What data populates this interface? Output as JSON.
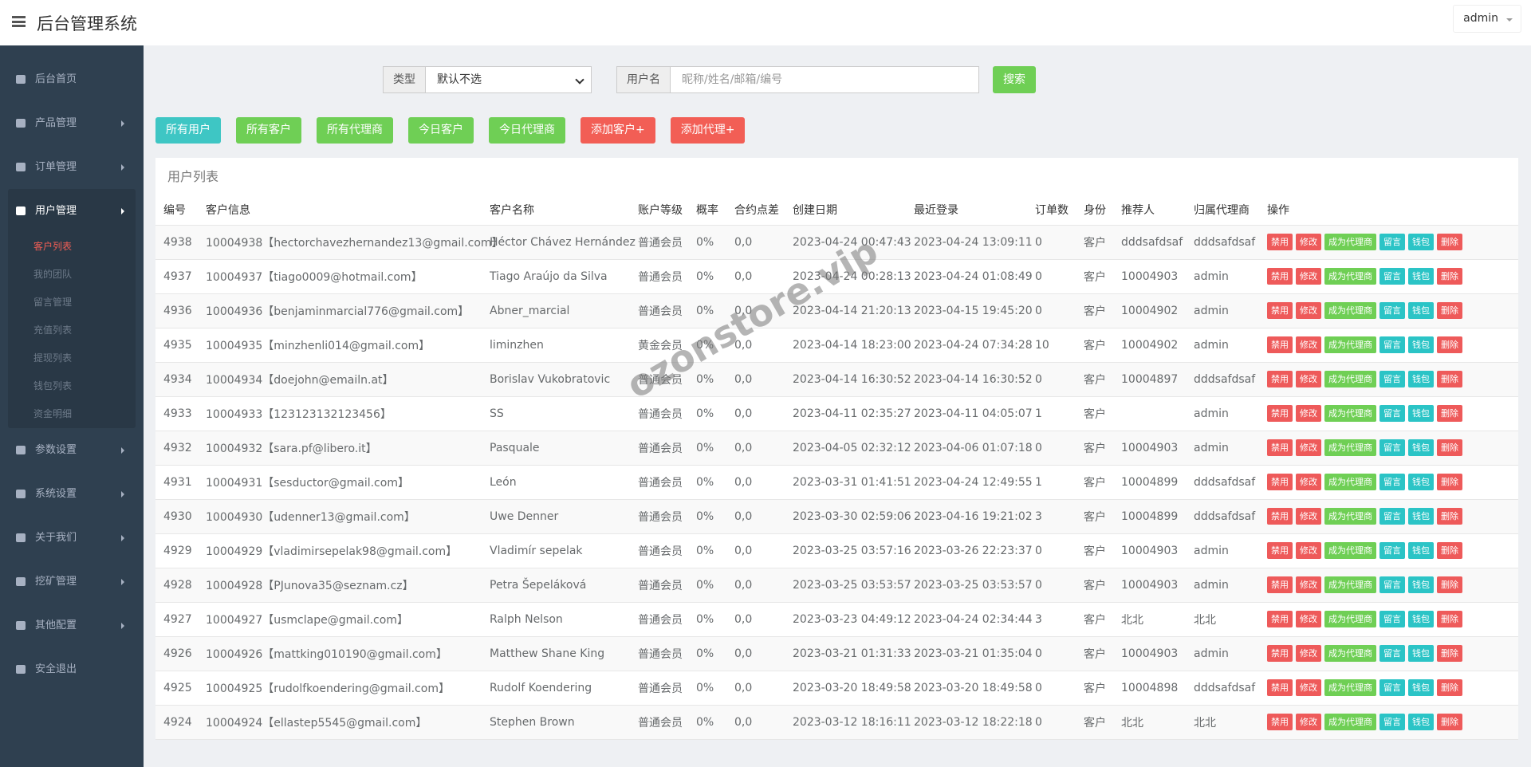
{
  "header": {
    "title": "后台管理系统",
    "user": "admin"
  },
  "sidebar": {
    "items": [
      {
        "label": "后台首页",
        "arrow": false
      },
      {
        "label": "产品管理",
        "arrow": true
      },
      {
        "label": "订单管理",
        "arrow": true
      },
      {
        "label": "用户管理",
        "arrow": true,
        "active": true,
        "children": [
          "客户列表",
          "我的团队",
          "留言管理",
          "充值列表",
          "提现列表",
          "钱包列表",
          "资金明细"
        ]
      },
      {
        "label": "参数设置",
        "arrow": true
      },
      {
        "label": "系统设置",
        "arrow": true
      },
      {
        "label": "关于我们",
        "arrow": true
      },
      {
        "label": "挖矿管理",
        "arrow": true
      },
      {
        "label": "其他配置",
        "arrow": true
      },
      {
        "label": "安全退出",
        "arrow": false
      }
    ]
  },
  "filters": {
    "type_label": "类型",
    "type_value": "默认不选",
    "user_label": "用户名",
    "user_placeholder": "昵称/姓名/邮箱/编号",
    "search": "搜索"
  },
  "buttons": [
    {
      "label": "所有用户",
      "color": "#3ec6c4"
    },
    {
      "label": "所有客户",
      "color": "#6fcf55"
    },
    {
      "label": "所有代理商",
      "color": "#6fcf55"
    },
    {
      "label": "今日客户",
      "color": "#6fcf55"
    },
    {
      "label": "今日代理商",
      "color": "#6fcf55"
    },
    {
      "label": "添加客户+",
      "color": "#f25e55"
    },
    {
      "label": "添加代理+",
      "color": "#f25e55"
    }
  ],
  "watermark": "ozonstore.vip",
  "table": {
    "title": "用户列表",
    "columns": [
      "编号",
      "客户信息",
      "客户名称",
      "账户等级",
      "概率",
      "合约点差",
      "创建日期",
      "最近登录",
      "订单数",
      "身份",
      "推荐人",
      "归属代理商",
      "操作"
    ],
    "actions": [
      {
        "label": "禁用",
        "color": "#ee5a5a"
      },
      {
        "label": "修改",
        "color": "#ee5a5a"
      },
      {
        "label": "成为代理商",
        "color": "#6fcf55"
      },
      {
        "label": "留言",
        "color": "#2bc4c6"
      },
      {
        "label": "钱包",
        "color": "#2bc4c6"
      },
      {
        "label": "删除",
        "color": "#ee5a5a"
      }
    ],
    "rows": [
      [
        "4938",
        "10004938【hectorchavezhernandez13@gmail.com】",
        "Héctor Chávez Hernández",
        "普通会员",
        "0%",
        "0,0",
        "2023-04-24 00:47:43",
        "2023-04-24 13:09:11",
        "0",
        "客户",
        "dddsafdsaf",
        "dddsafdsaf"
      ],
      [
        "4937",
        "10004937【tiago0009@hotmail.com】",
        "Tiago Araújo da Silva",
        "普通会员",
        "0%",
        "0,0",
        "2023-04-24 00:28:13",
        "2023-04-24 01:08:49",
        "0",
        "客户",
        "10004903",
        "admin"
      ],
      [
        "4936",
        "10004936【benjaminmarcial776@gmail.com】",
        "Abner_marcial",
        "普通会员",
        "0%",
        "0,0",
        "2023-04-14 21:20:13",
        "2023-04-15 19:45:20",
        "0",
        "客户",
        "10004902",
        "admin"
      ],
      [
        "4935",
        "10004935【minzhenli014@gmail.com】",
        "liminzhen",
        "黄金会员",
        "0%",
        "0,0",
        "2023-04-14 18:23:00",
        "2023-04-24 07:34:28",
        "10",
        "客户",
        "10004902",
        "admin"
      ],
      [
        "4934",
        "10004934【doejohn@emailn.at】",
        "Borislav Vukobratovic",
        "普通会员",
        "0%",
        "0,0",
        "2023-04-14 16:30:52",
        "2023-04-14 16:30:52",
        "0",
        "客户",
        "10004897",
        "dddsafdsaf"
      ],
      [
        "4933",
        "10004933【123123132123456】",
        "SS",
        "普通会员",
        "0%",
        "0,0",
        "2023-04-11 02:35:27",
        "2023-04-11 04:05:07",
        "1",
        "客户",
        null,
        "admin"
      ],
      [
        "4932",
        "10004932【sara.pf@libero.it】",
        "Pasquale",
        "普通会员",
        "0%",
        "0,0",
        "2023-04-05 02:32:12",
        "2023-04-06 01:07:18",
        "0",
        "客户",
        "10004903",
        "admin"
      ],
      [
        "4931",
        "10004931【sesductor@gmail.com】",
        "León",
        "普通会员",
        "0%",
        "0,0",
        "2023-03-31 01:41:51",
        "2023-04-24 12:49:55",
        "1",
        "客户",
        "10004899",
        "dddsafdsaf"
      ],
      [
        "4930",
        "10004930【udenner13@gmail.com】",
        "Uwe Denner",
        "普通会员",
        "0%",
        "0,0",
        "2023-03-30 02:59:06",
        "2023-04-16 19:21:02",
        "3",
        "客户",
        "10004899",
        "dddsafdsaf"
      ],
      [
        "4929",
        "10004929【vladimirsepelak98@gmail.com】",
        "Vladimír sepelak",
        "普通会员",
        "0%",
        "0,0",
        "2023-03-25 03:57:16",
        "2023-03-26 22:23:37",
        "0",
        "客户",
        "10004903",
        "admin"
      ],
      [
        "4928",
        "10004928【PJunova35@seznam.cz】",
        "Petra Šepeláková",
        "普通会员",
        "0%",
        "0,0",
        "2023-03-25 03:53:57",
        "2023-03-25 03:53:57",
        "0",
        "客户",
        "10004903",
        "admin"
      ],
      [
        "4927",
        "10004927【usmclape@gmail.com】",
        "Ralph Nelson",
        "普通会员",
        "0%",
        "0,0",
        "2023-03-23 04:49:12",
        "2023-04-24 02:34:44",
        "3",
        "客户",
        "北北",
        "北北"
      ],
      [
        "4926",
        "10004926【mattking010190@gmail.com】",
        "Matthew Shane King",
        "普通会员",
        "0%",
        "0,0",
        "2023-03-21 01:31:33",
        "2023-03-21 01:35:04",
        "0",
        "客户",
        "10004903",
        "admin"
      ],
      [
        "4925",
        "10004925【rudolfkoendering@gmail.com】",
        "Rudolf Koendering",
        "普通会员",
        "0%",
        "0,0",
        "2023-03-20 18:49:58",
        "2023-03-20 18:49:58",
        "0",
        "客户",
        "10004898",
        "dddsafdsaf"
      ],
      [
        "4924",
        "10004924【ellastep5545@gmail.com】",
        "Stephen Brown",
        "普通会员",
        "0%",
        "0,0",
        "2023-03-12 18:16:11",
        "2023-03-12 18:22:18",
        "0",
        "客户",
        "北北",
        "北北"
      ]
    ]
  }
}
